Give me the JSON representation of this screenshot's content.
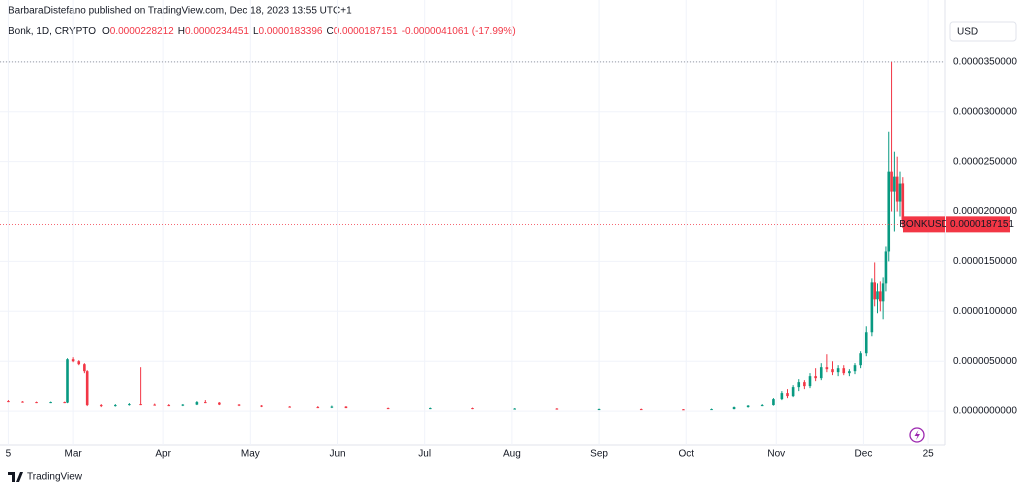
{
  "header": {
    "publisher": "BarbaraDistefano published on TradingView.com, Dec 18, 2023 13:55 UTC+1",
    "symbol": "Bonk, 1D, CRYPTO",
    "ohlc": [
      {
        "label": "O",
        "value": "0.0000228212"
      },
      {
        "label": "H",
        "value": "0.0000234451"
      },
      {
        "label": "L",
        "value": "0.0000183396"
      },
      {
        "label": "C",
        "value": "0.0000187151"
      }
    ],
    "change": "-0.0000041061 (-17.99%)",
    "currency": "USD"
  },
  "price_tag": {
    "symbol": "BONKUSD",
    "value": "0.0000187151"
  },
  "footer": "TradingView",
  "chart_data": {
    "type": "candlestick",
    "up_color": "#089981",
    "down_color": "#f23645",
    "grid": true,
    "xlim": [
      -3,
      333
    ],
    "ylim": [
      -2.9e-06,
      3.92e-05
    ],
    "xticks": [
      {
        "value": 0,
        "label": "5"
      },
      {
        "value": 23,
        "label": "Mar"
      },
      {
        "value": 55,
        "label": "Apr"
      },
      {
        "value": 86,
        "label": "May"
      },
      {
        "value": 117,
        "label": "Jun"
      },
      {
        "value": 148,
        "label": "Jul"
      },
      {
        "value": 179,
        "label": "Aug"
      },
      {
        "value": 210,
        "label": "Sep"
      },
      {
        "value": 241,
        "label": "Oct"
      },
      {
        "value": 273,
        "label": "Nov"
      },
      {
        "value": 304,
        "label": "Dec"
      },
      {
        "value": 327,
        "label": "25"
      }
    ],
    "yticks": [
      {
        "value": 0,
        "label": "0.0000000000"
      },
      {
        "value": 5e-06,
        "label": "0.0000050000"
      },
      {
        "value": 1e-05,
        "label": "0.0000100000"
      },
      {
        "value": 1.5e-05,
        "label": "0.0000150000"
      },
      {
        "value": 2e-05,
        "label": "0.0000200000"
      },
      {
        "value": 2.5e-05,
        "label": "0.0000250000"
      },
      {
        "value": 3e-05,
        "label": "0.0000300000"
      },
      {
        "value": 3.5e-05,
        "label": "0.0000350000"
      }
    ],
    "x": [
      0,
      5,
      10,
      15,
      20,
      21,
      23,
      25,
      27,
      28,
      33,
      38,
      43,
      47,
      52,
      57,
      62,
      67,
      70,
      75,
      82,
      90,
      100,
      110,
      115,
      120,
      135,
      150,
      165,
      180,
      195,
      210,
      225,
      240,
      250,
      258,
      263,
      268,
      272,
      275,
      277,
      279,
      281,
      283,
      285,
      287,
      289,
      291,
      293,
      295,
      297,
      299,
      301,
      303,
      305,
      307,
      308,
      309,
      310,
      311,
      312,
      313,
      314,
      315,
      316,
      317,
      318
    ],
    "open": [
      1e-06,
      9.5e-07,
      9e-07,
      8.5e-07,
      9e-07,
      8.5e-07,
      5.2e-06,
      5e-06,
      4.7e-06,
      4e-06,
      6e-07,
      5e-07,
      6e-07,
      7e-07,
      6.5e-07,
      6e-07,
      5.5e-07,
      6.5e-07,
      9e-07,
      8.5e-07,
      6.5e-07,
      5.5e-07,
      4.5e-07,
      4e-07,
      3.5e-07,
      4.5e-07,
      3e-07,
      2.5e-07,
      3e-07,
      2.5e-07,
      2.5e-07,
      2e-07,
      2e-07,
      1.8e-07,
      1.5e-07,
      2e-07,
      4e-07,
      5.5e-07,
      6e-07,
      1.2e-06,
      1.8e-06,
      1.5e-06,
      2.4e-06,
      2.9e-06,
      2.5e-06,
      3.5e-06,
      3.3e-06,
      4.4e-06,
      4.2e-06,
      3.9e-06,
      4.3e-06,
      3.8e-06,
      4e-06,
      4.6e-06,
      5.8e-06,
      7.9e-06,
      1.29e-05,
      1.12e-05,
      1.2e-05,
      1.1e-05,
      1.28e-05,
      1.6e-05,
      2.4e-05,
      2.2e-05,
      2.35e-05,
      2.1e-05,
      2.28212e-05
    ],
    "high": [
      1.1e-06,
      1e-06,
      9.5e-07,
      9.5e-07,
      9.5e-07,
      5.3e-06,
      5.4e-06,
      5.1e-06,
      4.8e-06,
      4.1e-06,
      7e-07,
      7e-07,
      8e-07,
      4.4e-06,
      7.5e-07,
      7e-07,
      7e-07,
      1e-06,
      1.1e-06,
      9e-07,
      7e-07,
      6e-07,
      5e-07,
      5e-07,
      5.5e-07,
      5e-07,
      3.5e-07,
      3.5e-07,
      3.5e-07,
      3e-07,
      3e-07,
      2.5e-07,
      2.5e-07,
      2e-07,
      2.5e-07,
      4.5e-07,
      6e-07,
      7e-07,
      1.3e-06,
      2e-06,
      2.2e-06,
      2.6e-06,
      3.2e-06,
      3.1e-06,
      3.8e-06,
      4.3e-06,
      4.8e-06,
      5.7e-06,
      5e-06,
      4.6e-06,
      4.6e-06,
      4.2e-06,
      4.8e-06,
      6e-06,
      8.5e-06,
      1.33e-05,
      1.49e-05,
      1.28e-05,
      1.3e-05,
      1.34e-05,
      1.65e-05,
      2.8e-05,
      3.5e-05,
      2.6e-05,
      2.55e-05,
      2.4e-05,
      2.34451e-05
    ],
    "low": [
      9e-07,
      8.5e-07,
      8e-07,
      8e-07,
      8e-07,
      8e-07,
      4.9e-06,
      4.6e-06,
      3.8e-06,
      5e-07,
      4e-07,
      4.5e-07,
      5.5e-07,
      6e-07,
      5.5e-07,
      5e-07,
      5e-07,
      6e-07,
      8e-07,
      6e-07,
      5e-07,
      4e-07,
      3.5e-07,
      3e-07,
      3e-07,
      3e-07,
      2e-07,
      2e-07,
      2e-07,
      2e-07,
      1.5e-07,
      1.5e-07,
      1.5e-07,
      1.2e-07,
      1.2e-07,
      1.8e-07,
      3.5e-07,
      5e-07,
      5.5e-07,
      1.1e-06,
      1.3e-06,
      1.4e-06,
      2e-06,
      2.2e-06,
      2.3e-06,
      3e-06,
      3.1e-06,
      3.9e-06,
      3.6e-06,
      3.5e-06,
      3.6e-06,
      3.5e-06,
      3.7e-06,
      4.3e-06,
      5.5e-06,
      7.5e-06,
      1.05e-05,
      9.8e-06,
      1e-05,
      9.2e-06,
      1.2e-05,
      1.5e-05,
      2e-05,
      1.8e-05,
      2e-05,
      1.95e-05,
      1.83396e-05
    ],
    "close": [
      9.5e-07,
      9e-07,
      8.5e-07,
      9e-07,
      8.5e-07,
      5.2e-06,
      5e-06,
      4.7e-06,
      4e-06,
      6e-07,
      5e-07,
      6e-07,
      7e-07,
      6.5e-07,
      6e-07,
      5.5e-07,
      6.5e-07,
      9e-07,
      8.5e-07,
      6.5e-07,
      5.5e-07,
      4.5e-07,
      4e-07,
      3.5e-07,
      4.5e-07,
      3e-07,
      2.5e-07,
      3e-07,
      2.5e-07,
      2.5e-07,
      2e-07,
      2e-07,
      1.8e-07,
      1.5e-07,
      2e-07,
      4e-07,
      5.5e-07,
      6e-07,
      1.2e-06,
      1.8e-06,
      1.5e-06,
      2.4e-06,
      2.9e-06,
      2.5e-06,
      3.5e-06,
      3.3e-06,
      4.4e-06,
      4.2e-06,
      3.9e-06,
      4.3e-06,
      3.8e-06,
      4e-06,
      4.6e-06,
      5.8e-06,
      7.9e-06,
      1.29e-05,
      1.12e-05,
      1.2e-05,
      1.1e-05,
      1.28e-05,
      1.6e-05,
      2.4e-05,
      2.2e-05,
      2.35e-05,
      2.1e-05,
      2.28e-05,
      1.87151e-05
    ]
  }
}
